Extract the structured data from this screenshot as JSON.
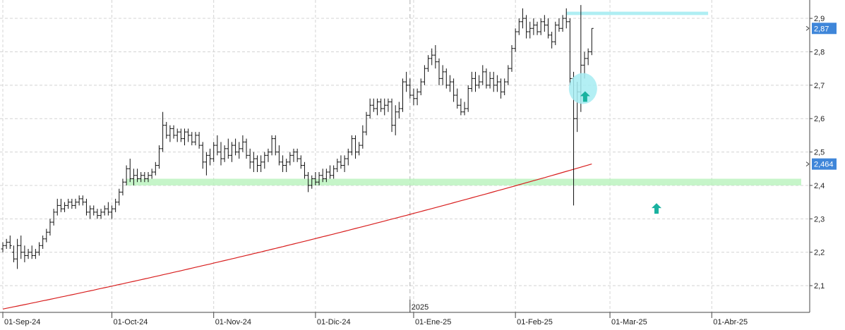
{
  "chart_data": {
    "type": "ohlc",
    "title": "",
    "xlabel": "",
    "ylabel": "",
    "ylim": [
      2.02,
      2.955
    ],
    "y_ticks": [
      "2,1",
      "2,2",
      "2,3",
      "2,4",
      "2,5",
      "2,6",
      "2,7",
      "2,8",
      "2,9"
    ],
    "y_tick_values": [
      2.1,
      2.2,
      2.3,
      2.4,
      2.5,
      2.6,
      2.7,
      2.8,
      2.9
    ],
    "x_labels": [
      {
        "label": "01-Sep-24",
        "bar": 0
      },
      {
        "label": "01-Oct-24",
        "bar": 30
      },
      {
        "label": "01-Nov-24",
        "bar": 58
      },
      {
        "label": "01-Dic-24",
        "bar": 86
      },
      {
        "label": "01-Ene-25",
        "bar": 113
      },
      {
        "label": "01-Feb-25",
        "bar": 141
      },
      {
        "label": "01-Mar-25",
        "bar": 167
      },
      {
        "label": "01-Abr-25",
        "bar": 195
      }
    ],
    "year_marker": {
      "label": "2025",
      "bar": 112
    },
    "last_price_label": "2,87",
    "last_price": 2.87,
    "ma_label": "2,464",
    "ma_value": 2.464,
    "ma_start": 2.03,
    "support_band": [
      2.4,
      2.42
    ],
    "resistance_band": [
      2.91,
      2.92
    ],
    "bars": [
      [
        2.21,
        2.23,
        2.2,
        2.22
      ],
      [
        2.22,
        2.24,
        2.21,
        2.23
      ],
      [
        2.23,
        2.25,
        2.21,
        2.22
      ],
      [
        2.2,
        2.22,
        2.17,
        2.18
      ],
      [
        2.18,
        2.24,
        2.15,
        2.22
      ],
      [
        2.22,
        2.25,
        2.18,
        2.2
      ],
      [
        2.2,
        2.22,
        2.17,
        2.19
      ],
      [
        2.19,
        2.21,
        2.18,
        2.2
      ],
      [
        2.2,
        2.22,
        2.18,
        2.19
      ],
      [
        2.19,
        2.21,
        2.18,
        2.2
      ],
      [
        2.2,
        2.23,
        2.19,
        2.22
      ],
      [
        2.22,
        2.25,
        2.21,
        2.24
      ],
      [
        2.24,
        2.27,
        2.23,
        2.26
      ],
      [
        2.26,
        2.3,
        2.25,
        2.29
      ],
      [
        2.29,
        2.33,
        2.28,
        2.32
      ],
      [
        2.32,
        2.36,
        2.31,
        2.34
      ],
      [
        2.34,
        2.36,
        2.32,
        2.33
      ],
      [
        2.33,
        2.35,
        2.32,
        2.34
      ],
      [
        2.34,
        2.36,
        2.33,
        2.35
      ],
      [
        2.35,
        2.36,
        2.33,
        2.34
      ],
      [
        2.34,
        2.36,
        2.33,
        2.35
      ],
      [
        2.35,
        2.37,
        2.34,
        2.36
      ],
      [
        2.36,
        2.37,
        2.34,
        2.35
      ],
      [
        2.35,
        2.36,
        2.31,
        2.32
      ],
      [
        2.32,
        2.34,
        2.3,
        2.33
      ],
      [
        2.33,
        2.34,
        2.31,
        2.32
      ],
      [
        2.32,
        2.33,
        2.3,
        2.31
      ],
      [
        2.31,
        2.33,
        2.3,
        2.32
      ],
      [
        2.32,
        2.34,
        2.31,
        2.33
      ],
      [
        2.33,
        2.35,
        2.31,
        2.32
      ],
      [
        2.32,
        2.34,
        2.3,
        2.33
      ],
      [
        2.33,
        2.36,
        2.32,
        2.35
      ],
      [
        2.35,
        2.39,
        2.34,
        2.38
      ],
      [
        2.38,
        2.42,
        2.37,
        2.41
      ],
      [
        2.41,
        2.46,
        2.4,
        2.45
      ],
      [
        2.45,
        2.48,
        2.41,
        2.42
      ],
      [
        2.42,
        2.45,
        2.4,
        2.43
      ],
      [
        2.43,
        2.45,
        2.41,
        2.42
      ],
      [
        2.42,
        2.44,
        2.41,
        2.43
      ],
      [
        2.43,
        2.44,
        2.41,
        2.42
      ],
      [
        2.42,
        2.44,
        2.41,
        2.43
      ],
      [
        2.43,
        2.45,
        2.42,
        2.44
      ],
      [
        2.44,
        2.47,
        2.43,
        2.46
      ],
      [
        2.46,
        2.52,
        2.45,
        2.51
      ],
      [
        2.51,
        2.62,
        2.5,
        2.58
      ],
      [
        2.58,
        2.59,
        2.54,
        2.55
      ],
      [
        2.55,
        2.58,
        2.53,
        2.57
      ],
      [
        2.57,
        2.58,
        2.54,
        2.55
      ],
      [
        2.55,
        2.57,
        2.53,
        2.56
      ],
      [
        2.56,
        2.57,
        2.53,
        2.54
      ],
      [
        2.54,
        2.57,
        2.52,
        2.56
      ],
      [
        2.56,
        2.57,
        2.53,
        2.55
      ],
      [
        2.55,
        2.56,
        2.52,
        2.53
      ],
      [
        2.53,
        2.56,
        2.52,
        2.55
      ],
      [
        2.55,
        2.56,
        2.51,
        2.52
      ],
      [
        2.52,
        2.53,
        2.45,
        2.47
      ],
      [
        2.47,
        2.5,
        2.43,
        2.49
      ],
      [
        2.49,
        2.51,
        2.46,
        2.48
      ],
      [
        2.48,
        2.53,
        2.47,
        2.52
      ],
      [
        2.52,
        2.55,
        2.49,
        2.5
      ],
      [
        2.5,
        2.53,
        2.46,
        2.48
      ],
      [
        2.48,
        2.52,
        2.47,
        2.51
      ],
      [
        2.51,
        2.54,
        2.48,
        2.49
      ],
      [
        2.49,
        2.53,
        2.47,
        2.52
      ],
      [
        2.52,
        2.54,
        2.49,
        2.5
      ],
      [
        2.5,
        2.53,
        2.48,
        2.51
      ],
      [
        2.51,
        2.55,
        2.5,
        2.53
      ],
      [
        2.53,
        2.54,
        2.48,
        2.49
      ],
      [
        2.49,
        2.51,
        2.45,
        2.47
      ],
      [
        2.47,
        2.5,
        2.44,
        2.48
      ],
      [
        2.48,
        2.49,
        2.44,
        2.46
      ],
      [
        2.46,
        2.49,
        2.44,
        2.47
      ],
      [
        2.47,
        2.5,
        2.45,
        2.49
      ],
      [
        2.49,
        2.51,
        2.47,
        2.5
      ],
      [
        2.5,
        2.55,
        2.49,
        2.54
      ],
      [
        2.54,
        2.55,
        2.49,
        2.5
      ],
      [
        2.5,
        2.52,
        2.46,
        2.47
      ],
      [
        2.47,
        2.49,
        2.44,
        2.46
      ],
      [
        2.46,
        2.48,
        2.44,
        2.47
      ],
      [
        2.47,
        2.5,
        2.46,
        2.49
      ],
      [
        2.49,
        2.51,
        2.47,
        2.5
      ],
      [
        2.5,
        2.51,
        2.47,
        2.48
      ],
      [
        2.48,
        2.49,
        2.45,
        2.46
      ],
      [
        2.46,
        2.47,
        2.42,
        2.43
      ],
      [
        2.43,
        2.44,
        2.38,
        2.4
      ],
      [
        2.4,
        2.43,
        2.39,
        2.42
      ],
      [
        2.42,
        2.44,
        2.4,
        2.41
      ],
      [
        2.41,
        2.44,
        2.4,
        2.43
      ],
      [
        2.43,
        2.45,
        2.41,
        2.42
      ],
      [
        2.42,
        2.45,
        2.41,
        2.44
      ],
      [
        2.44,
        2.46,
        2.42,
        2.43
      ],
      [
        2.43,
        2.46,
        2.42,
        2.45
      ],
      [
        2.45,
        2.48,
        2.44,
        2.47
      ],
      [
        2.47,
        2.49,
        2.45,
        2.46
      ],
      [
        2.46,
        2.49,
        2.44,
        2.48
      ],
      [
        2.48,
        2.51,
        2.46,
        2.5
      ],
      [
        2.5,
        2.55,
        2.49,
        2.54
      ],
      [
        2.54,
        2.55,
        2.48,
        2.5
      ],
      [
        2.5,
        2.53,
        2.49,
        2.52
      ],
      [
        2.52,
        2.58,
        2.51,
        2.56
      ],
      [
        2.56,
        2.62,
        2.55,
        2.61
      ],
      [
        2.61,
        2.66,
        2.6,
        2.64
      ],
      [
        2.64,
        2.66,
        2.62,
        2.63
      ],
      [
        2.63,
        2.66,
        2.61,
        2.65
      ],
      [
        2.65,
        2.66,
        2.62,
        2.63
      ],
      [
        2.63,
        2.66,
        2.61,
        2.64
      ],
      [
        2.64,
        2.66,
        2.62,
        2.65
      ],
      [
        2.65,
        2.66,
        2.56,
        2.58
      ],
      [
        2.58,
        2.64,
        2.55,
        2.62
      ],
      [
        2.62,
        2.65,
        2.6,
        2.63
      ],
      [
        2.63,
        2.72,
        2.62,
        2.71
      ],
      [
        2.71,
        2.74,
        2.68,
        2.7
      ],
      [
        2.7,
        2.72,
        2.66,
        2.67
      ],
      [
        2.67,
        2.69,
        2.64,
        2.66
      ],
      [
        2.66,
        2.69,
        2.64,
        2.68
      ],
      [
        2.68,
        2.72,
        2.67,
        2.71
      ],
      [
        2.71,
        2.76,
        2.7,
        2.75
      ],
      [
        2.75,
        2.79,
        2.74,
        2.78
      ],
      [
        2.78,
        2.81,
        2.76,
        2.79
      ],
      [
        2.79,
        2.82,
        2.75,
        2.77
      ],
      [
        2.77,
        2.78,
        2.7,
        2.72
      ],
      [
        2.72,
        2.76,
        2.7,
        2.74
      ],
      [
        2.74,
        2.75,
        2.69,
        2.7
      ],
      [
        2.7,
        2.73,
        2.68,
        2.71
      ],
      [
        2.71,
        2.72,
        2.65,
        2.67
      ],
      [
        2.67,
        2.69,
        2.63,
        2.64
      ],
      [
        2.64,
        2.66,
        2.61,
        2.62
      ],
      [
        2.62,
        2.65,
        2.61,
        2.63
      ],
      [
        2.63,
        2.7,
        2.62,
        2.69
      ],
      [
        2.69,
        2.74,
        2.68,
        2.72
      ],
      [
        2.72,
        2.74,
        2.68,
        2.7
      ],
      [
        2.7,
        2.73,
        2.69,
        2.71
      ],
      [
        2.71,
        2.76,
        2.7,
        2.74
      ],
      [
        2.74,
        2.75,
        2.69,
        2.7
      ],
      [
        2.7,
        2.74,
        2.69,
        2.72
      ],
      [
        2.72,
        2.74,
        2.68,
        2.7
      ],
      [
        2.7,
        2.73,
        2.68,
        2.71
      ],
      [
        2.71,
        2.72,
        2.66,
        2.68
      ],
      [
        2.68,
        2.72,
        2.67,
        2.71
      ],
      [
        2.71,
        2.76,
        2.7,
        2.75
      ],
      [
        2.75,
        2.82,
        2.74,
        2.81
      ],
      [
        2.81,
        2.87,
        2.8,
        2.86
      ],
      [
        2.86,
        2.9,
        2.85,
        2.89
      ],
      [
        2.89,
        2.93,
        2.87,
        2.9
      ],
      [
        2.9,
        2.91,
        2.84,
        2.86
      ],
      [
        2.86,
        2.89,
        2.84,
        2.87
      ],
      [
        2.87,
        2.9,
        2.85,
        2.88
      ],
      [
        2.88,
        2.89,
        2.85,
        2.86
      ],
      [
        2.86,
        2.9,
        2.85,
        2.89
      ],
      [
        2.89,
        2.91,
        2.86,
        2.88
      ],
      [
        2.88,
        2.9,
        2.84,
        2.85
      ],
      [
        2.85,
        2.86,
        2.81,
        2.83
      ],
      [
        2.83,
        2.89,
        2.82,
        2.88
      ],
      [
        2.88,
        2.9,
        2.86,
        2.87
      ],
      [
        2.87,
        2.91,
        2.86,
        2.9
      ],
      [
        2.9,
        2.93,
        2.87,
        2.89
      ],
      [
        2.89,
        2.9,
        2.7,
        2.72
      ],
      [
        2.72,
        2.74,
        2.34,
        2.6
      ],
      [
        2.6,
        2.71,
        2.56,
        2.68
      ],
      [
        2.68,
        2.94,
        2.62,
        2.76
      ],
      [
        2.76,
        2.8,
        2.72,
        2.78
      ],
      [
        2.78,
        2.81,
        2.76,
        2.8
      ],
      [
        2.8,
        2.87,
        2.79,
        2.87
      ]
    ]
  }
}
